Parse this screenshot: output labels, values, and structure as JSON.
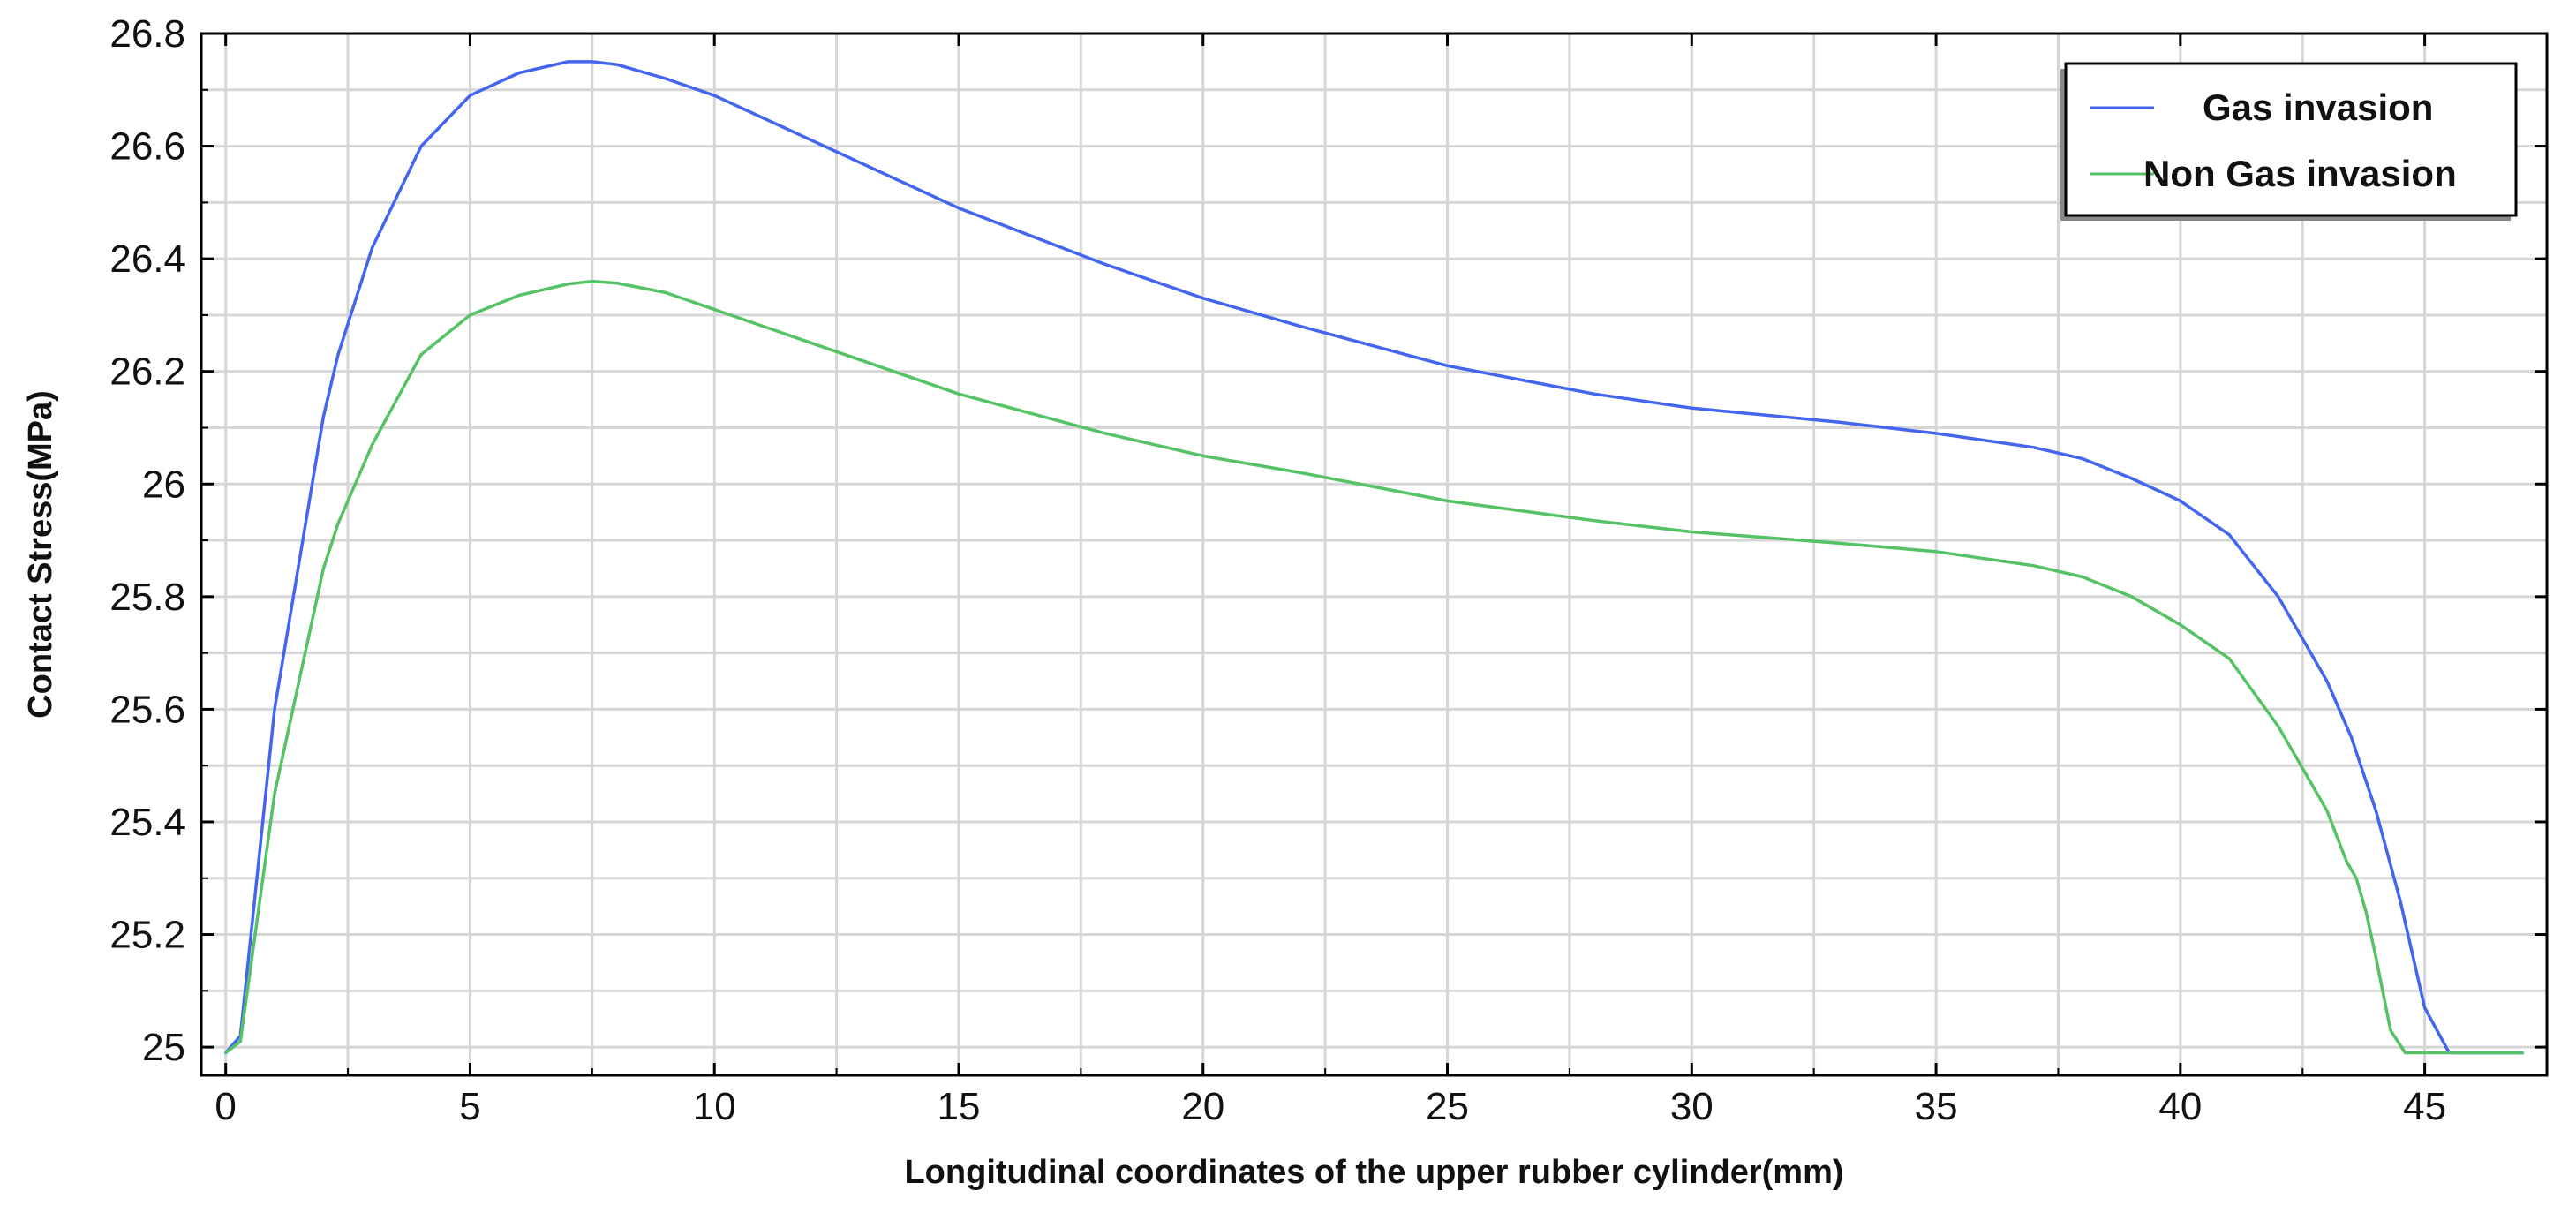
{
  "chart_data": {
    "type": "line",
    "title": "",
    "xlabel": "Longitudinal coordinates of the upper rubber cylinder(mm)",
    "ylabel": "Contact Stress(MPa)",
    "xlim": [
      -0.5,
      47.5
    ],
    "ylim": [
      24.95,
      26.8
    ],
    "x_ticks": [
      0,
      5,
      10,
      15,
      20,
      25,
      30,
      35,
      40,
      45
    ],
    "x_tick_labels": [
      "0",
      "5",
      "10",
      "15",
      "20",
      "25",
      "30",
      "35",
      "40",
      "45"
    ],
    "y_ticks": [
      25,
      25.2,
      25.4,
      25.6,
      25.8,
      26,
      26.2,
      26.4,
      26.6,
      26.8
    ],
    "y_tick_labels": [
      "25",
      "25.2",
      "25.4",
      "25.6",
      "25.8",
      "26",
      "26.2",
      "26.4",
      "26.6",
      "26.8"
    ],
    "grid": true,
    "legend_position": "top-right",
    "series": [
      {
        "name": "Gas invasion",
        "color": "#4466ee",
        "x": [
          0,
          0.3,
          1,
          2,
          2.3,
          3,
          4,
          5,
          6,
          7,
          7.5,
          8,
          9,
          10,
          12,
          15,
          18,
          20,
          22,
          25,
          28,
          30,
          33,
          35,
          37,
          38,
          39,
          40,
          41,
          42,
          43,
          43.5,
          44,
          44.5,
          45,
          45.5,
          46,
          47
        ],
        "y": [
          24.99,
          25.02,
          25.6,
          26.12,
          26.23,
          26.42,
          26.6,
          26.69,
          26.73,
          26.75,
          26.75,
          26.745,
          26.72,
          26.69,
          26.61,
          26.49,
          26.39,
          26.33,
          26.28,
          26.21,
          26.16,
          26.135,
          26.11,
          26.09,
          26.065,
          26.045,
          26.01,
          25.97,
          25.91,
          25.8,
          25.65,
          25.55,
          25.42,
          25.26,
          25.07,
          24.99,
          24.99,
          24.99
        ]
      },
      {
        "name": "Non Gas invasion",
        "color": "#55c266",
        "x": [
          0,
          0.3,
          1,
          2,
          2.3,
          3,
          4,
          5,
          6,
          7,
          7.5,
          8,
          9,
          10,
          12,
          15,
          18,
          20,
          22,
          25,
          28,
          30,
          33,
          35,
          37,
          38,
          39,
          40,
          41,
          42,
          43,
          43.4,
          43.6,
          43.8,
          44,
          44.3,
          44.6,
          45,
          46,
          47
        ],
        "y": [
          24.99,
          25.01,
          25.45,
          25.85,
          25.93,
          26.07,
          26.23,
          26.3,
          26.335,
          26.355,
          26.36,
          26.357,
          26.34,
          26.31,
          26.25,
          26.16,
          26.09,
          26.05,
          26.02,
          25.97,
          25.935,
          25.915,
          25.895,
          25.88,
          25.855,
          25.835,
          25.8,
          25.75,
          25.69,
          25.57,
          25.42,
          25.33,
          25.3,
          25.24,
          25.16,
          25.03,
          24.99,
          24.99,
          24.99,
          24.99
        ]
      }
    ]
  }
}
